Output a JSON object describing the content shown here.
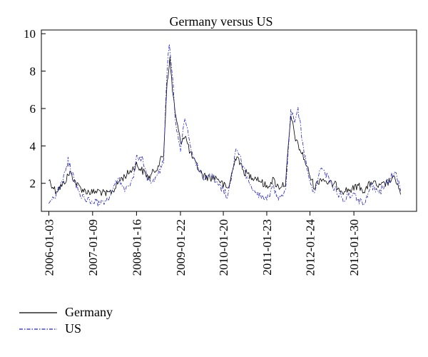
{
  "chart_data": {
    "type": "line",
    "title": "Germany versus US",
    "xlabel": "",
    "ylabel": "",
    "ylim": [
      0.5,
      10.2
    ],
    "xlim": [
      "2005-11-01",
      "2014-07-15"
    ],
    "yticks": [
      2,
      4,
      6,
      8,
      10
    ],
    "xticks": [
      "2006-01-03",
      "2007-01-09",
      "2008-01-16",
      "2009-01-22",
      "2010-01-20",
      "2011-01-23",
      "2012-01-24",
      "2013-01-30"
    ],
    "legend_position": "bottom-left",
    "grid": false,
    "series": [
      {
        "name": "Germany",
        "color": "#000000",
        "line_style": "solid",
        "points": [
          [
            "2006-01-03",
            2.2
          ],
          [
            "2006-03-01",
            1.6
          ],
          [
            "2006-05-01",
            1.9
          ],
          [
            "2006-07-01",
            2.6
          ],
          [
            "2006-09-01",
            1.9
          ],
          [
            "2006-11-01",
            1.6
          ],
          [
            "2007-01-09",
            1.5
          ],
          [
            "2007-03-01",
            1.6
          ],
          [
            "2007-05-01",
            1.4
          ],
          [
            "2007-07-01",
            1.6
          ],
          [
            "2007-09-01",
            2.2
          ],
          [
            "2007-11-01",
            2.5
          ],
          [
            "2008-01-16",
            3.0
          ],
          [
            "2008-03-01",
            2.7
          ],
          [
            "2008-05-01",
            2.3
          ],
          [
            "2008-07-01",
            2.8
          ],
          [
            "2008-09-01",
            3.5
          ],
          [
            "2008-10-01",
            7.5
          ],
          [
            "2008-10-25",
            8.6
          ],
          [
            "2008-11-15",
            7.0
          ],
          [
            "2008-12-15",
            5.5
          ],
          [
            "2009-01-22",
            4.2
          ],
          [
            "2009-03-01",
            4.6
          ],
          [
            "2009-04-15",
            3.6
          ],
          [
            "2009-06-01",
            3.0
          ],
          [
            "2009-08-01",
            2.4
          ],
          [
            "2009-10-01",
            2.3
          ],
          [
            "2009-12-01",
            2.3
          ],
          [
            "2010-01-20",
            1.9
          ],
          [
            "2010-03-01",
            1.7
          ],
          [
            "2010-05-15",
            3.6
          ],
          [
            "2010-07-01",
            2.7
          ],
          [
            "2010-09-01",
            2.4
          ],
          [
            "2010-11-01",
            2.3
          ],
          [
            "2011-01-23",
            1.8
          ],
          [
            "2011-03-15",
            2.2
          ],
          [
            "2011-05-01",
            1.8
          ],
          [
            "2011-07-01",
            2.0
          ],
          [
            "2011-08-15",
            5.6
          ],
          [
            "2011-10-01",
            4.2
          ],
          [
            "2011-12-01",
            3.4
          ],
          [
            "2012-01-24",
            2.4
          ],
          [
            "2012-03-01",
            1.8
          ],
          [
            "2012-05-01",
            2.3
          ],
          [
            "2012-07-01",
            2.0
          ],
          [
            "2012-09-01",
            1.9
          ],
          [
            "2012-11-01",
            1.6
          ],
          [
            "2013-01-30",
            1.7
          ],
          [
            "2013-03-01",
            1.9
          ],
          [
            "2013-05-01",
            1.6
          ],
          [
            "2013-07-01",
            2.1
          ],
          [
            "2013-09-01",
            1.8
          ],
          [
            "2013-11-01",
            2.0
          ],
          [
            "2014-01-15",
            2.3
          ],
          [
            "2014-03-01",
            1.4
          ]
        ]
      },
      {
        "name": "US",
        "color": "#2222cc",
        "line_style": "dashdot",
        "points": [
          [
            "2006-01-03",
            1.1
          ],
          [
            "2006-03-01",
            1.3
          ],
          [
            "2006-05-01",
            2.1
          ],
          [
            "2006-06-15",
            3.2
          ],
          [
            "2006-08-01",
            2.3
          ],
          [
            "2006-10-01",
            1.3
          ],
          [
            "2006-12-01",
            1.1
          ],
          [
            "2007-02-01",
            1.0
          ],
          [
            "2007-04-01",
            0.9
          ],
          [
            "2007-06-01",
            1.2
          ],
          [
            "2007-08-15",
            2.3
          ],
          [
            "2007-10-15",
            1.6
          ],
          [
            "2007-12-15",
            2.2
          ],
          [
            "2008-01-16",
            3.5
          ],
          [
            "2008-03-01",
            3.3
          ],
          [
            "2008-05-01",
            2.0
          ],
          [
            "2008-07-01",
            2.3
          ],
          [
            "2008-09-01",
            3.2
          ],
          [
            "2008-10-01",
            8.2
          ],
          [
            "2008-10-20",
            9.6
          ],
          [
            "2008-11-15",
            7.8
          ],
          [
            "2008-12-15",
            5.0
          ],
          [
            "2009-01-22",
            3.8
          ],
          [
            "2009-03-01",
            5.6
          ],
          [
            "2009-04-15",
            4.0
          ],
          [
            "2009-06-01",
            3.1
          ],
          [
            "2009-08-01",
            2.2
          ],
          [
            "2009-10-01",
            2.6
          ],
          [
            "2009-12-01",
            2.0
          ],
          [
            "2010-01-20",
            1.6
          ],
          [
            "2010-03-01",
            1.3
          ],
          [
            "2010-05-15",
            4.0
          ],
          [
            "2010-07-01",
            3.0
          ],
          [
            "2010-09-01",
            1.9
          ],
          [
            "2010-11-01",
            1.4
          ],
          [
            "2011-01-23",
            1.1
          ],
          [
            "2011-03-15",
            1.8
          ],
          [
            "2011-05-01",
            1.3
          ],
          [
            "2011-07-01",
            1.6
          ],
          [
            "2011-08-15",
            6.0
          ],
          [
            "2011-09-15",
            5.4
          ],
          [
            "2011-10-15",
            6.0
          ],
          [
            "2011-12-01",
            3.8
          ],
          [
            "2012-01-24",
            2.0
          ],
          [
            "2012-03-01",
            1.5
          ],
          [
            "2012-05-01",
            2.9
          ],
          [
            "2012-07-01",
            2.2
          ],
          [
            "2012-09-01",
            1.6
          ],
          [
            "2012-11-01",
            1.2
          ],
          [
            "2013-01-30",
            1.5
          ],
          [
            "2013-03-01",
            1.0
          ],
          [
            "2013-05-01",
            1.0
          ],
          [
            "2013-07-01",
            1.8
          ],
          [
            "2013-09-01",
            1.5
          ],
          [
            "2013-11-01",
            2.0
          ],
          [
            "2014-01-15",
            2.6
          ],
          [
            "2014-03-01",
            1.6
          ]
        ]
      }
    ]
  }
}
